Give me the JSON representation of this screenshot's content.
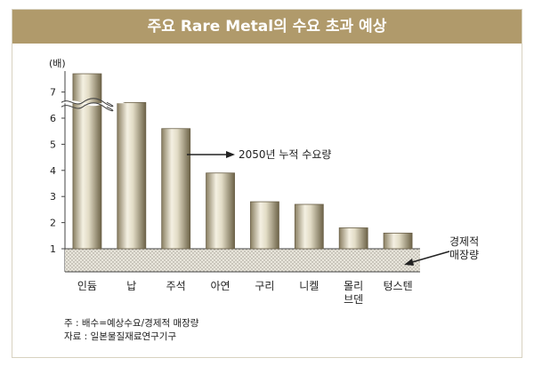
{
  "chart_data": {
    "type": "bar",
    "title": "주요 Rare Metal의 수요 초과 예상",
    "ylabel": "(배)",
    "ylim": [
      0,
      7.5
    ],
    "ytick_labels": [
      "1",
      "2",
      "3",
      "4",
      "5",
      "6",
      "7"
    ],
    "categories": [
      [
        "인듐"
      ],
      [
        "납"
      ],
      [
        "주석"
      ],
      [
        "아연"
      ],
      [
        "구리"
      ],
      [
        "니켈"
      ],
      [
        "몰리",
        "브덴"
      ],
      [
        "텅스텐"
      ]
    ],
    "series": [
      {
        "name": "2050년 누적 수요량",
        "values": [
          7.7,
          6.6,
          5.6,
          3.9,
          2.8,
          2.7,
          1.8,
          1.6
        ]
      }
    ],
    "axis_break_on": "인듐",
    "reserve_band_value": 1,
    "annotations": {
      "demand": "2050년 누적 수요량",
      "reserve": [
        "경제적",
        "매장량"
      ]
    }
  },
  "notes": [
    "주 : 배수=예상수요/경제적 매장량",
    "자료 : 일본물질재료연구기구"
  ]
}
